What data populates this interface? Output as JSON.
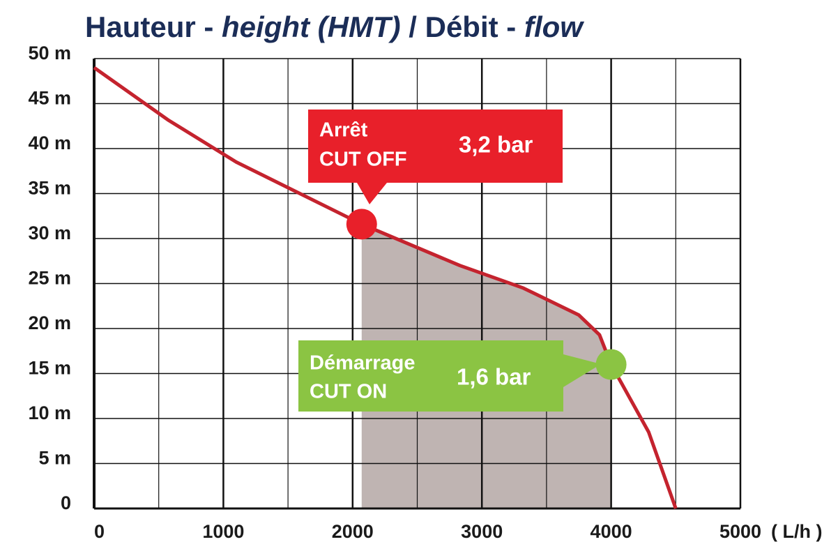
{
  "chart_data": {
    "type": "line",
    "title_parts": [
      "Hauteur - ",
      "height (HMT)",
      " / Débit - ",
      "flow"
    ],
    "title_italic": [
      false,
      true,
      false,
      true
    ],
    "title_color": "#1b2d57",
    "x_unit": "( L/h )",
    "x": [
      0,
      570,
      1100,
      2070,
      2830,
      3320,
      3750,
      3910,
      4000,
      4290,
      4500
    ],
    "series": [
      {
        "name": "HMT",
        "color": "#c4232e",
        "values": [
          49,
          43.2,
          38.5,
          31.6,
          27,
          24.5,
          21.5,
          19.3,
          16,
          8.5,
          0
        ]
      }
    ],
    "xlim": [
      0,
      5000
    ],
    "xticks": [
      0,
      1000,
      2000,
      3000,
      4000,
      5000
    ],
    "x_minor_ticks": [
      500,
      1500,
      2500,
      3500,
      4500
    ],
    "ylim": [
      0,
      50
    ],
    "yticks": [
      0,
      {
        "value": 5,
        "label": "5 m"
      },
      {
        "value": 10,
        "label": "10 m"
      },
      {
        "value": 15,
        "label": "15 m"
      },
      {
        "value": 20,
        "label": "20 m"
      },
      {
        "value": 25,
        "label": "25 m"
      },
      {
        "value": 30,
        "label": "30 m"
      },
      {
        "value": 35,
        "label": "35 m"
      },
      {
        "value": 40,
        "label": "40 m"
      },
      {
        "value": 45,
        "label": "45 m"
      },
      {
        "value": {
          "value": 50,
          "label": "50 m"
        },
        "label": "50 m"
      }
    ],
    "grid": true,
    "shade_color": "#bfb4b2",
    "annotations": [
      {
        "point": 3,
        "color": "#e8202a",
        "lines": [
          "Arrêt",
          "CUT OFF"
        ],
        "pressure": "3,2 bar"
      },
      {
        "point": 8,
        "color": "#8bc443",
        "lines": [
          "Démarrage",
          "CUT ON"
        ],
        "pressure": "1,6 bar"
      }
    ]
  }
}
